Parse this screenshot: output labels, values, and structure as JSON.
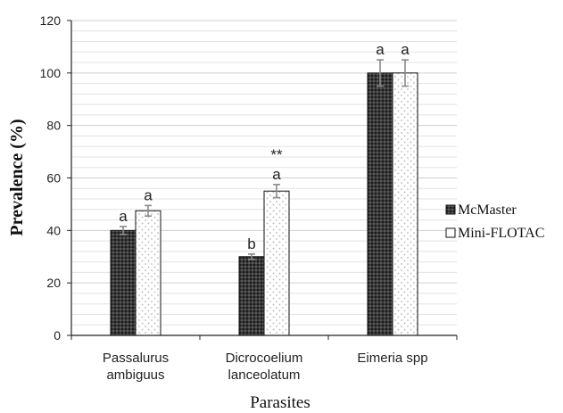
{
  "chart_data": {
    "type": "bar",
    "xlabel": "Parasites",
    "ylabel": "Prevalence (%)",
    "ylim": [
      0,
      120
    ],
    "yticks": [
      "0",
      "20",
      "40",
      "60",
      "80",
      "100",
      "120"
    ],
    "grid": "horizontal",
    "legend_position": "right",
    "categories": [
      [
        "Passalurus",
        "ambiguus"
      ],
      [
        "Dicrocoelium",
        "lanceolatum"
      ],
      [
        "Eimeria spp"
      ]
    ],
    "series": [
      {
        "name": "McMaster",
        "values": [
          40,
          30,
          100
        ],
        "errors": [
          1.5,
          1,
          5
        ],
        "letters": [
          "a",
          "b",
          "a"
        ],
        "fill": "#333333",
        "pattern": "dark-checker"
      },
      {
        "name": "Mini-FLOTAC",
        "values": [
          47.5,
          55,
          100
        ],
        "errors": [
          2,
          2.5,
          5
        ],
        "letters": [
          "a",
          "a",
          "a"
        ],
        "fill": "#ffffff",
        "pattern": "light-dots"
      }
    ],
    "annotations": [
      {
        "category_index": 1,
        "series_index": 1,
        "text": "**"
      }
    ]
  }
}
